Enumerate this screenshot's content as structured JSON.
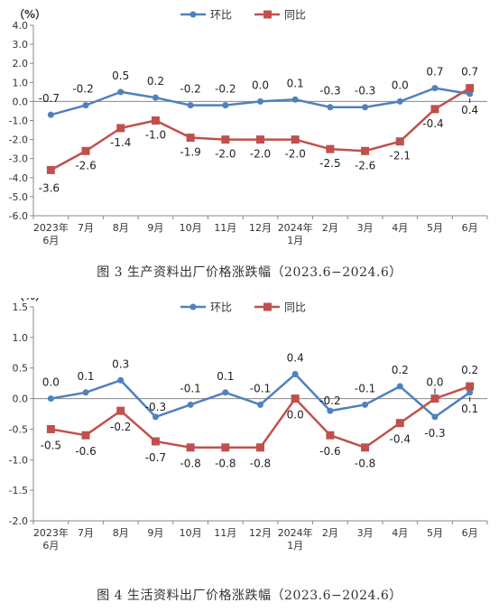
{
  "chart_data": [
    {
      "type": "line",
      "unit_label": "（%）",
      "caption": "图 3  生产资料出厂价格涨跌幅（2023.6−2024.6）",
      "ylim": [
        -6.0,
        4.0
      ],
      "yticks": [
        "4.0",
        "3.0",
        "2.0",
        "1.0",
        "0.0",
        "-1.0",
        "-2.0",
        "-3.0",
        "-4.0",
        "-5.0",
        "-6.0"
      ],
      "categories": [
        [
          "2023年",
          "6月"
        ],
        [
          "7月"
        ],
        [
          "8月"
        ],
        [
          "9月"
        ],
        [
          "10月"
        ],
        [
          "11月"
        ],
        [
          "12月"
        ],
        [
          "2024年",
          "1月"
        ],
        [
          "2月"
        ],
        [
          "3月"
        ],
        [
          "4月"
        ],
        [
          "5月"
        ],
        [
          "6月"
        ]
      ],
      "legend_position": "top-center",
      "series": [
        {
          "name": "环比",
          "color": "#4f81bd",
          "marker": "circle",
          "values": [
            -0.7,
            -0.2,
            0.5,
            0.2,
            -0.2,
            -0.2,
            0.0,
            0.1,
            -0.3,
            -0.3,
            0.0,
            0.7,
            0.4
          ],
          "labels": [
            "-0.7",
            "-0.2",
            "0.5",
            "0.2",
            "-0.2",
            "-0.2",
            "0.0",
            "0.1",
            "-0.3",
            "-0.3",
            "0.0",
            "0.7",
            "0.4"
          ]
        },
        {
          "name": "同比",
          "color": "#c0504d",
          "marker": "square",
          "values": [
            -3.6,
            -2.6,
            -1.4,
            -1.0,
            -1.9,
            -2.0,
            -2.0,
            -2.0,
            -2.5,
            -2.6,
            -2.1,
            -0.4,
            0.7
          ],
          "labels": [
            "-3.6",
            "-2.6",
            "-1.4",
            "-1.0",
            "-1.9",
            "-2.0",
            "-2.0",
            "-2.0",
            "-2.5",
            "-2.6",
            "-2.1",
            "-0.4",
            "0.7"
          ]
        }
      ]
    },
    {
      "type": "line",
      "unit_label": "（%）",
      "caption": "图 4  生活资料出厂价格涨跌幅（2023.6−2024.6）",
      "ylim": [
        -2.0,
        1.5
      ],
      "yticks": [
        "1.5",
        "1.0",
        "0.5",
        "0.0",
        "-0.5",
        "-1.0",
        "-1.5",
        "-2.0"
      ],
      "categories": [
        [
          "2023年",
          "6月"
        ],
        [
          "7月"
        ],
        [
          "8月"
        ],
        [
          "9月"
        ],
        [
          "10月"
        ],
        [
          "11月"
        ],
        [
          "12月"
        ],
        [
          "2024年",
          "1月"
        ],
        [
          "2月"
        ],
        [
          "3月"
        ],
        [
          "4月"
        ],
        [
          "5月"
        ],
        [
          "6月"
        ]
      ],
      "legend_position": "top-center",
      "series": [
        {
          "name": "环比",
          "color": "#4f81bd",
          "marker": "circle",
          "values": [
            0.0,
            0.1,
            0.3,
            -0.3,
            -0.1,
            0.1,
            -0.1,
            0.4,
            -0.2,
            -0.1,
            0.2,
            -0.3,
            0.1
          ],
          "labels": [
            "0.0",
            "0.1",
            "0.3",
            "-0.3",
            "-0.1",
            "0.1",
            "-0.1",
            "0.4",
            "-0.2",
            "-0.1",
            "0.2",
            "-0.3",
            "0.1"
          ]
        },
        {
          "name": "同比",
          "color": "#c0504d",
          "marker": "square",
          "values": [
            -0.5,
            -0.6,
            -0.2,
            -0.7,
            -0.8,
            -0.8,
            -0.8,
            0.0,
            -0.6,
            -0.8,
            -0.4,
            0.0,
            0.2
          ],
          "labels": [
            "-0.5",
            "-0.6",
            "-0.2",
            "-0.7",
            "-0.8",
            "-0.8",
            "-0.8",
            "0.0",
            "-0.6",
            "-0.8",
            "-0.4",
            "0.0",
            "0.2"
          ]
        }
      ]
    }
  ]
}
